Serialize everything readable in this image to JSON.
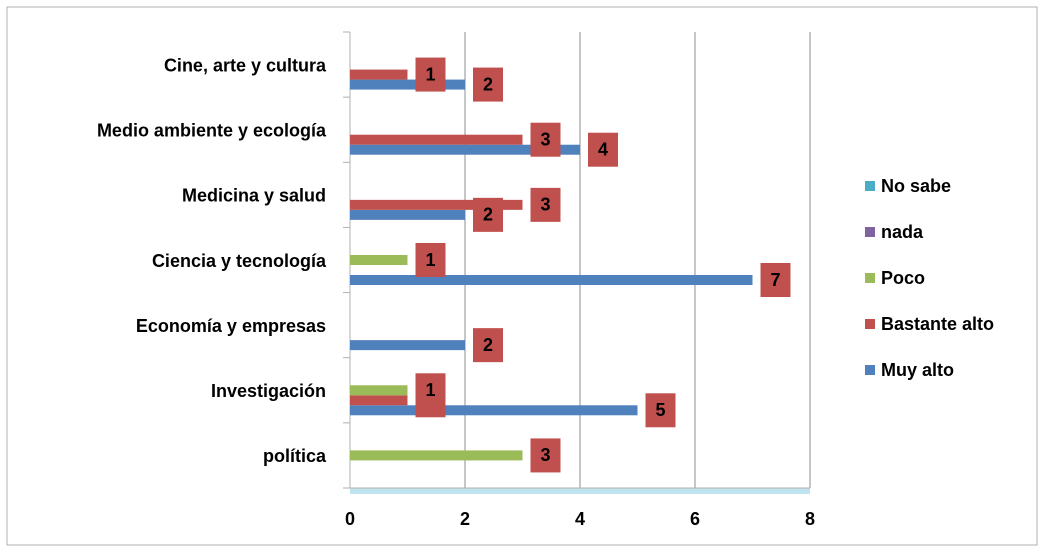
{
  "chart_data": {
    "type": "bar",
    "orientation": "horizontal",
    "categories": [
      "Cine, arte y cultura",
      "Medio ambiente y ecología",
      "Medicina y salud",
      "Ciencia y tecnología",
      "Economía y empresas",
      "Investigación",
      "política"
    ],
    "series": [
      {
        "name": "Muy alto",
        "color": "#4f81bd",
        "values": [
          2,
          4,
          2,
          7,
          2,
          5,
          null
        ]
      },
      {
        "name": "Bastante alto",
        "color": "#c0504d",
        "values": [
          1,
          3,
          3,
          null,
          null,
          1,
          null
        ]
      },
      {
        "name": "Poco",
        "color": "#9bbb59",
        "values": [
          null,
          null,
          null,
          1,
          null,
          1,
          3
        ]
      },
      {
        "name": "nada",
        "color": "#8064a2",
        "values": [
          null,
          null,
          null,
          null,
          null,
          null,
          null
        ]
      },
      {
        "name": "No sabe",
        "color": "#4bacc6",
        "values": [
          null,
          null,
          null,
          null,
          null,
          null,
          null
        ]
      }
    ],
    "xlim": [
      0,
      8
    ],
    "xticks": [
      0,
      2,
      4,
      6,
      8
    ],
    "grid": true,
    "legend": "right",
    "label_color": "#c0504d"
  }
}
